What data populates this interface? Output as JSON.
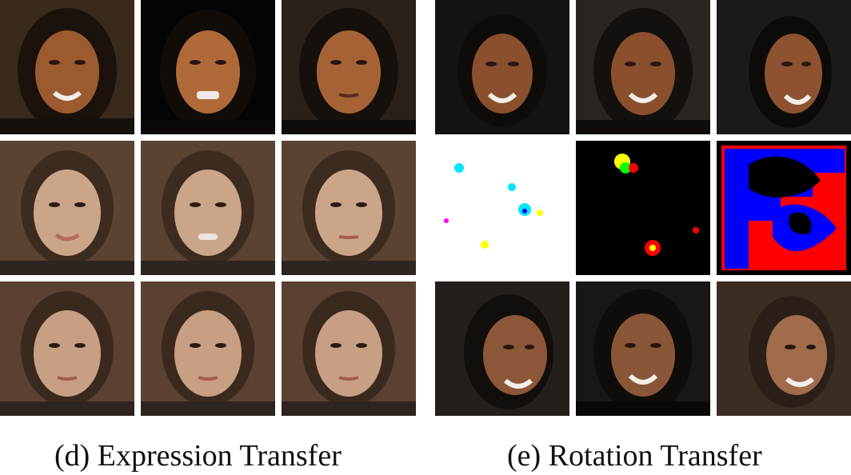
{
  "figure": {
    "panels": [
      {
        "caption": "(d) Expression Transfer"
      },
      {
        "caption": "(e) Rotation Transfer"
      }
    ]
  }
}
